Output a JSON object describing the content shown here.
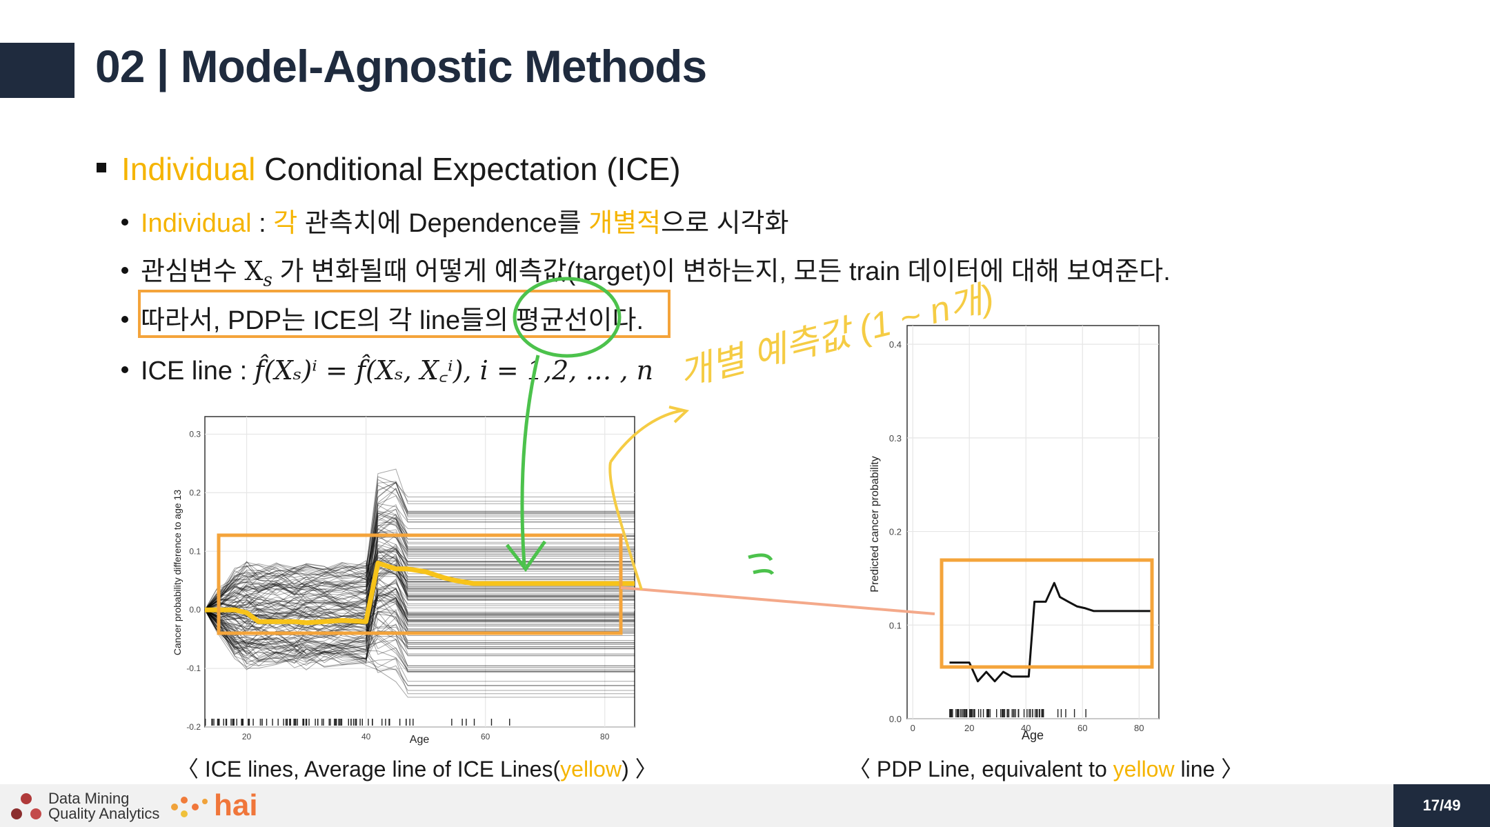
{
  "slide": {
    "section_number": "02",
    "separator": "|",
    "title": "Model-Agnostic Methods",
    "page": "17/49"
  },
  "heading": {
    "highlight": "Individual",
    "rest": " Conditional Expectation (ICE)"
  },
  "bullets": {
    "b1": {
      "w1": "Individual",
      "sep": " : ",
      "w2": "각",
      "w3": " 관측치에 Dependence를 ",
      "w4": "개별적",
      "w5": "으로 시각화"
    },
    "b2": {
      "pre": "관심변수 ",
      "var": "X",
      "sub": "s",
      "post": " 가 변화될때 어떻게 예측값(target)이 변하는지, 모든 train 데이터에 대해 보여준다."
    },
    "b3": "따라서, PDP는 ICE의 각 line들의 평균선이다.",
    "b4": {
      "pre": "ICE line : ",
      "formula": "f̂(Xₛ)ⁱ = f̂(Xₛ, X꜀ⁱ), i = 1,2, … , n"
    }
  },
  "captions": {
    "left": {
      "pre": "〈 ICE lines, Average line of ICE Lines(",
      "hl": "yellow",
      "post": ") 〉"
    },
    "right": {
      "pre": "〈 PDP Line, equivalent to ",
      "hl": "yellow",
      "post": " line 〉"
    }
  },
  "annotation_handwriting": "개별 예측값 (1 ~ n개)",
  "footer": {
    "logo1_line1": "Data Mining",
    "logo1_line2": "Quality Analytics",
    "logo2": "hai"
  },
  "colors": {
    "highlight": "#f5b400",
    "box": "#f4a43b",
    "green": "#4cc24c",
    "navy": "#1f2b3e",
    "yellow_line": "#f7c31a"
  },
  "chart_data": [
    {
      "type": "line",
      "title": "",
      "xlabel": "Age",
      "ylabel": "Cancer probability difference to age 13",
      "xlim": [
        13,
        85
      ],
      "ylim": [
        -0.2,
        0.33
      ],
      "xticks": [
        "20",
        "40",
        "60",
        "80"
      ],
      "yticks": [
        "-0.2",
        "-0.1",
        "0.0",
        "0.1",
        "0.2",
        "0.3"
      ],
      "grid": true,
      "series": [
        {
          "x": [
            13,
            15,
            18,
            20,
            22,
            25,
            28,
            30,
            33,
            36,
            40,
            42,
            45,
            47,
            50,
            53,
            55,
            58,
            60,
            63,
            66,
            70,
            75,
            80,
            85
          ],
          "y": [
            0.0,
            0.0,
            0.0,
            -0.005,
            -0.02,
            -0.02,
            -0.02,
            -0.022,
            -0.02,
            -0.018,
            -0.02,
            0.08,
            0.07,
            0.07,
            0.065,
            0.055,
            0.05,
            0.045,
            0.045,
            0.045,
            0.045,
            0.045,
            0.045,
            0.045,
            0.045
          ]
        }
      ]
    },
    {
      "type": "line",
      "title": "",
      "xlabel": "Age",
      "ylabel": "Predicted cancer probability",
      "xlim": [
        -2,
        87
      ],
      "ylim": [
        0.0,
        0.42
      ],
      "xticks": [
        "0",
        "20",
        "40",
        "60",
        "80"
      ],
      "yticks": [
        "0.0",
        "0.1",
        "0.2",
        "0.3",
        "0.4"
      ],
      "grid": true,
      "series": [
        {
          "x": [
            13,
            17,
            20,
            23,
            26,
            29,
            32,
            35,
            38,
            41,
            43,
            45,
            47,
            50,
            52,
            55,
            58,
            61,
            64,
            67,
            70,
            75,
            80,
            84
          ],
          "y": [
            0.06,
            0.06,
            0.06,
            0.04,
            0.05,
            0.04,
            0.05,
            0.045,
            0.045,
            0.045,
            0.125,
            0.125,
            0.125,
            0.145,
            0.13,
            0.125,
            0.12,
            0.118,
            0.115,
            0.115,
            0.115,
            0.115,
            0.115,
            0.115
          ]
        }
      ]
    }
  ]
}
